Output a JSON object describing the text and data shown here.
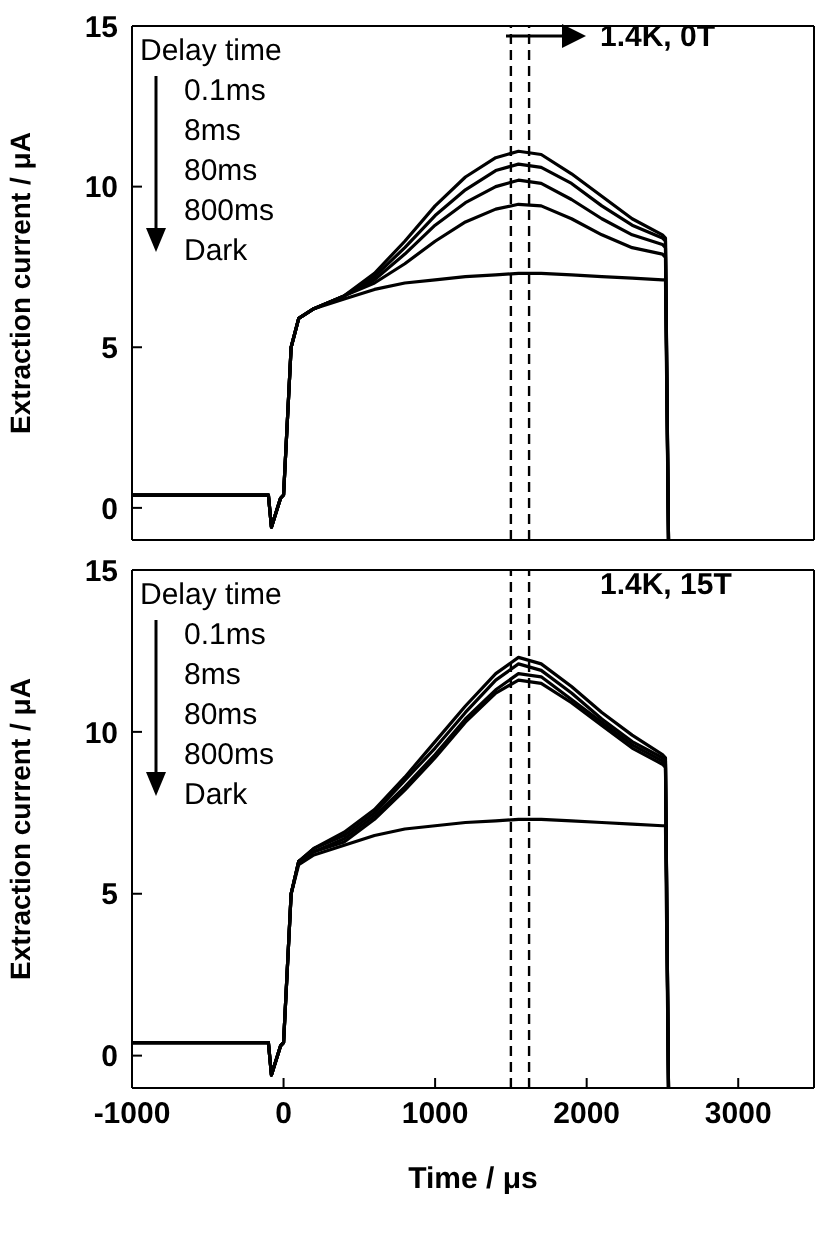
{
  "chart_data": [
    {
      "type": "line",
      "ylabel": "Extraction current / μA",
      "xlim": [
        -1000,
        3500
      ],
      "ylim": [
        -1,
        15
      ],
      "xticks": [
        -1000,
        0,
        1000,
        2000,
        3000
      ],
      "yticks": [
        0,
        5,
        10,
        15
      ],
      "tick_labels": "y",
      "marker": "none",
      "line_style": "solid",
      "annotations": [
        "Delay time",
        "0.1ms",
        "8ms",
        "80ms",
        "800ms",
        "Dark",
        "1.4K, 0T"
      ],
      "ref_lines": [
        {
          "axis": "x",
          "value": 1500,
          "color": "#000000",
          "line_style": "dashed"
        },
        {
          "axis": "x",
          "value": 1620,
          "color": "#000000",
          "line_style": "dashed"
        }
      ],
      "x": [
        -1000,
        -100,
        -80,
        -20,
        0,
        50,
        100,
        200,
        400,
        600,
        800,
        1000,
        1200,
        1400,
        1550,
        1700,
        1900,
        2100,
        2300,
        2500,
        2520,
        2540
      ],
      "series": [
        {
          "color": "#000000",
          "values": [
            0.4,
            0.4,
            -0.6,
            0.3,
            0.4,
            5,
            5.9,
            6.2,
            6.6,
            7.3,
            8.3,
            9.4,
            10.3,
            10.9,
            11.1,
            11.0,
            10.4,
            9.7,
            9.0,
            8.5,
            8.4,
            -1
          ]
        },
        {
          "color": "#000000",
          "values": [
            0.4,
            0.4,
            -0.6,
            0.3,
            0.4,
            5,
            5.9,
            6.2,
            6.6,
            7.2,
            8.1,
            9.1,
            9.9,
            10.5,
            10.7,
            10.6,
            10.1,
            9.4,
            8.8,
            8.4,
            8.3,
            -1
          ]
        },
        {
          "color": "#000000",
          "values": [
            0.4,
            0.4,
            -0.6,
            0.3,
            0.4,
            5,
            5.9,
            6.2,
            6.6,
            7.1,
            7.9,
            8.8,
            9.5,
            10.0,
            10.2,
            10.1,
            9.6,
            9.0,
            8.5,
            8.2,
            8.1,
            -1
          ]
        },
        {
          "color": "#000000",
          "values": [
            0.4,
            0.4,
            -0.6,
            0.3,
            0.4,
            5,
            5.9,
            6.2,
            6.6,
            7.0,
            7.6,
            8.3,
            8.9,
            9.3,
            9.45,
            9.4,
            9.0,
            8.5,
            8.1,
            7.9,
            7.8,
            -1
          ]
        },
        {
          "color": "#000000",
          "values": [
            0.4,
            0.4,
            -0.6,
            0.3,
            0.4,
            5,
            5.9,
            6.2,
            6.5,
            6.8,
            7.0,
            7.1,
            7.2,
            7.25,
            7.3,
            7.3,
            7.25,
            7.2,
            7.15,
            7.1,
            7.1,
            -1
          ]
        }
      ]
    },
    {
      "type": "line",
      "xlabel": "Time / μs",
      "ylabel": "Extraction current / μA",
      "xlim": [
        -1000,
        3500
      ],
      "ylim": [
        -1,
        15
      ],
      "xticks": [
        -1000,
        0,
        1000,
        2000,
        3000
      ],
      "yticks": [
        0,
        5,
        10,
        15
      ],
      "marker": "none",
      "line_style": "solid",
      "annotations": [
        "Delay time",
        "0.1ms",
        "8ms",
        "80ms",
        "800ms",
        "Dark",
        "1.4K, 15T"
      ],
      "ref_lines": [
        {
          "axis": "x",
          "value": 1500,
          "color": "#000000",
          "line_style": "dashed"
        },
        {
          "axis": "x",
          "value": 1620,
          "color": "#000000",
          "line_style": "dashed"
        }
      ],
      "x": [
        -1000,
        -100,
        -80,
        -20,
        0,
        50,
        100,
        200,
        400,
        600,
        800,
        1000,
        1200,
        1400,
        1550,
        1700,
        1900,
        2100,
        2300,
        2500,
        2520,
        2540
      ],
      "series": [
        {
          "color": "#000000",
          "values": [
            0.4,
            0.4,
            -0.6,
            0.3,
            0.4,
            5,
            6.0,
            6.4,
            6.9,
            7.6,
            8.6,
            9.7,
            10.8,
            11.8,
            12.3,
            12.1,
            11.4,
            10.6,
            9.9,
            9.3,
            9.2,
            -1
          ]
        },
        {
          "color": "#000000",
          "values": [
            0.4,
            0.4,
            -0.6,
            0.3,
            0.4,
            5,
            6.0,
            6.4,
            6.8,
            7.5,
            8.5,
            9.5,
            10.6,
            11.6,
            12.1,
            11.9,
            11.2,
            10.4,
            9.7,
            9.2,
            9.1,
            -1
          ]
        },
        {
          "color": "#000000",
          "values": [
            0.4,
            0.4,
            -0.6,
            0.3,
            0.4,
            5,
            6.0,
            6.3,
            6.7,
            7.4,
            8.3,
            9.3,
            10.4,
            11.3,
            11.8,
            11.7,
            11.0,
            10.3,
            9.6,
            9.1,
            9.0,
            -1
          ]
        },
        {
          "color": "#000000",
          "values": [
            0.4,
            0.4,
            -0.6,
            0.3,
            0.4,
            5,
            6.0,
            6.3,
            6.6,
            7.3,
            8.2,
            9.2,
            10.3,
            11.2,
            11.6,
            11.5,
            10.9,
            10.2,
            9.5,
            9.0,
            8.9,
            -1
          ]
        },
        {
          "color": "#000000",
          "values": [
            0.4,
            0.4,
            -0.6,
            0.3,
            0.4,
            5,
            5.9,
            6.2,
            6.5,
            6.8,
            7.0,
            7.1,
            7.2,
            7.25,
            7.3,
            7.3,
            7.25,
            7.2,
            7.15,
            7.1,
            7.1,
            -1
          ]
        }
      ]
    }
  ]
}
